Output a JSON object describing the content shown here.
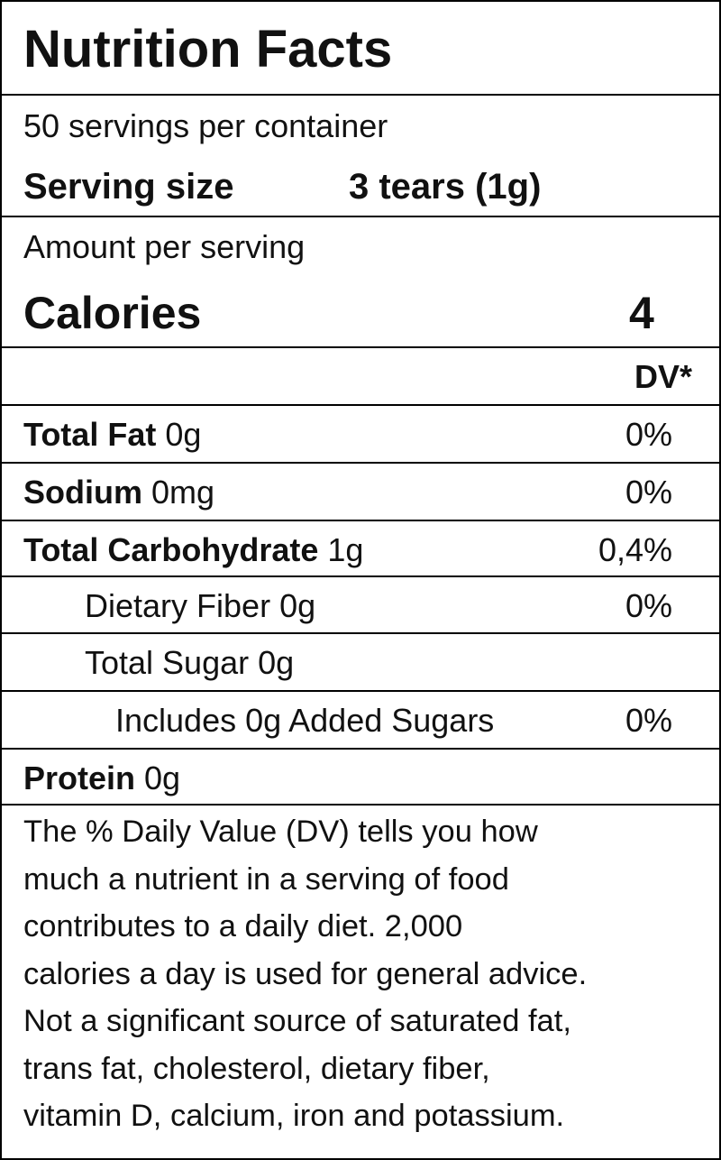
{
  "header": {
    "title": "Nutrition Facts",
    "servings": "50 servings per container",
    "serving_size_label": "Serving size",
    "serving_size_value": "3 tears (1g)"
  },
  "calories": {
    "amount_label": "Amount per serving",
    "label": "Calories",
    "value": "4"
  },
  "dv_header": "DV*",
  "rows": [
    {
      "label": "Total Fat",
      "amount": "0g",
      "dv": "0%"
    },
    {
      "label": "Sodium",
      "amount": "0mg",
      "dv": "0%"
    },
    {
      "label": "Total Carbohydrate",
      "amount": "1g",
      "dv": "0,4%"
    },
    {
      "label": "Dietary Fiber",
      "amount": "0g",
      "dv": "0%"
    },
    {
      "label": "Total Sugar",
      "amount": "0g"
    },
    {
      "label": "Includes 0g Added Sugars",
      "dv": "0%"
    },
    {
      "label": "Protein",
      "amount": "0g"
    }
  ],
  "footnote": [
    "The % Daily Value (DV) tells you how",
    "much a nutrient in a serving of food",
    "contributes to a daily diet. 2,000",
    "calories a day is used for general advice.",
    "Not a significant source of saturated fat,",
    "trans fat, cholesterol, dietary fiber,",
    "vitamin D, calcium, iron and potassium."
  ]
}
